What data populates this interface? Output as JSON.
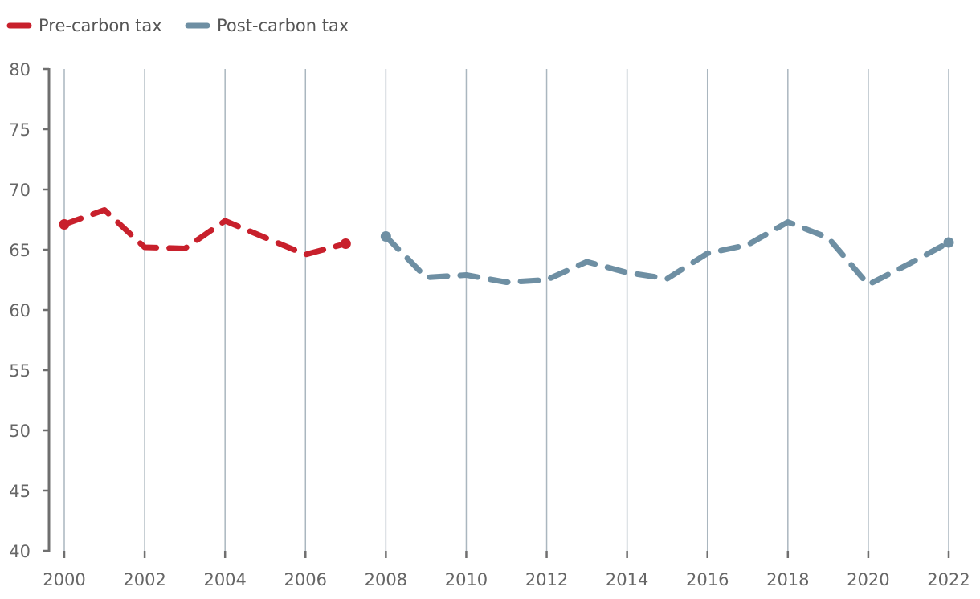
{
  "chart_data": {
    "type": "line",
    "title": "",
    "xlabel": "",
    "ylabel": "",
    "x": [
      2000,
      2001,
      2002,
      2003,
      2004,
      2005,
      2006,
      2007,
      2008,
      2009,
      2010,
      2011,
      2012,
      2013,
      2014,
      2015,
      2016,
      2017,
      2018,
      2019,
      2020,
      2021,
      2022
    ],
    "xlim": [
      2000,
      2022
    ],
    "ylim": [
      40,
      80
    ],
    "x_ticks": [
      "2000",
      "2002",
      "2004",
      "2006",
      "2008",
      "2010",
      "2012",
      "2014",
      "2016",
      "2018",
      "2020",
      "2022"
    ],
    "y_ticks": [
      "40",
      "45",
      "50",
      "55",
      "60",
      "65",
      "70",
      "75",
      "80"
    ],
    "grid": "vertical",
    "legend_position": "top-left",
    "series": [
      {
        "name": "Pre-carbon tax",
        "color": "#c8202c",
        "style": "dashed",
        "points": [
          [
            2000,
            67.1
          ],
          [
            2001,
            68.3
          ],
          [
            2002,
            65.2
          ],
          [
            2003,
            65.1
          ],
          [
            2004,
            67.4
          ],
          [
            2005,
            66.0
          ],
          [
            2006,
            64.6
          ],
          [
            2007,
            65.5
          ]
        ]
      },
      {
        "name": "Post-carbon tax",
        "color": "#6e8fa3",
        "style": "dashed",
        "points": [
          [
            2008,
            66.1
          ],
          [
            2009,
            62.7
          ],
          [
            2010,
            62.9
          ],
          [
            2011,
            62.3
          ],
          [
            2012,
            62.5
          ],
          [
            2013,
            64.0
          ],
          [
            2014,
            63.1
          ],
          [
            2015,
            62.6
          ],
          [
            2016,
            64.7
          ],
          [
            2017,
            65.4
          ],
          [
            2018,
            67.3
          ],
          [
            2019,
            66.0
          ],
          [
            2020,
            62.1
          ],
          [
            2021,
            63.8
          ],
          [
            2022,
            65.6
          ]
        ]
      }
    ]
  }
}
